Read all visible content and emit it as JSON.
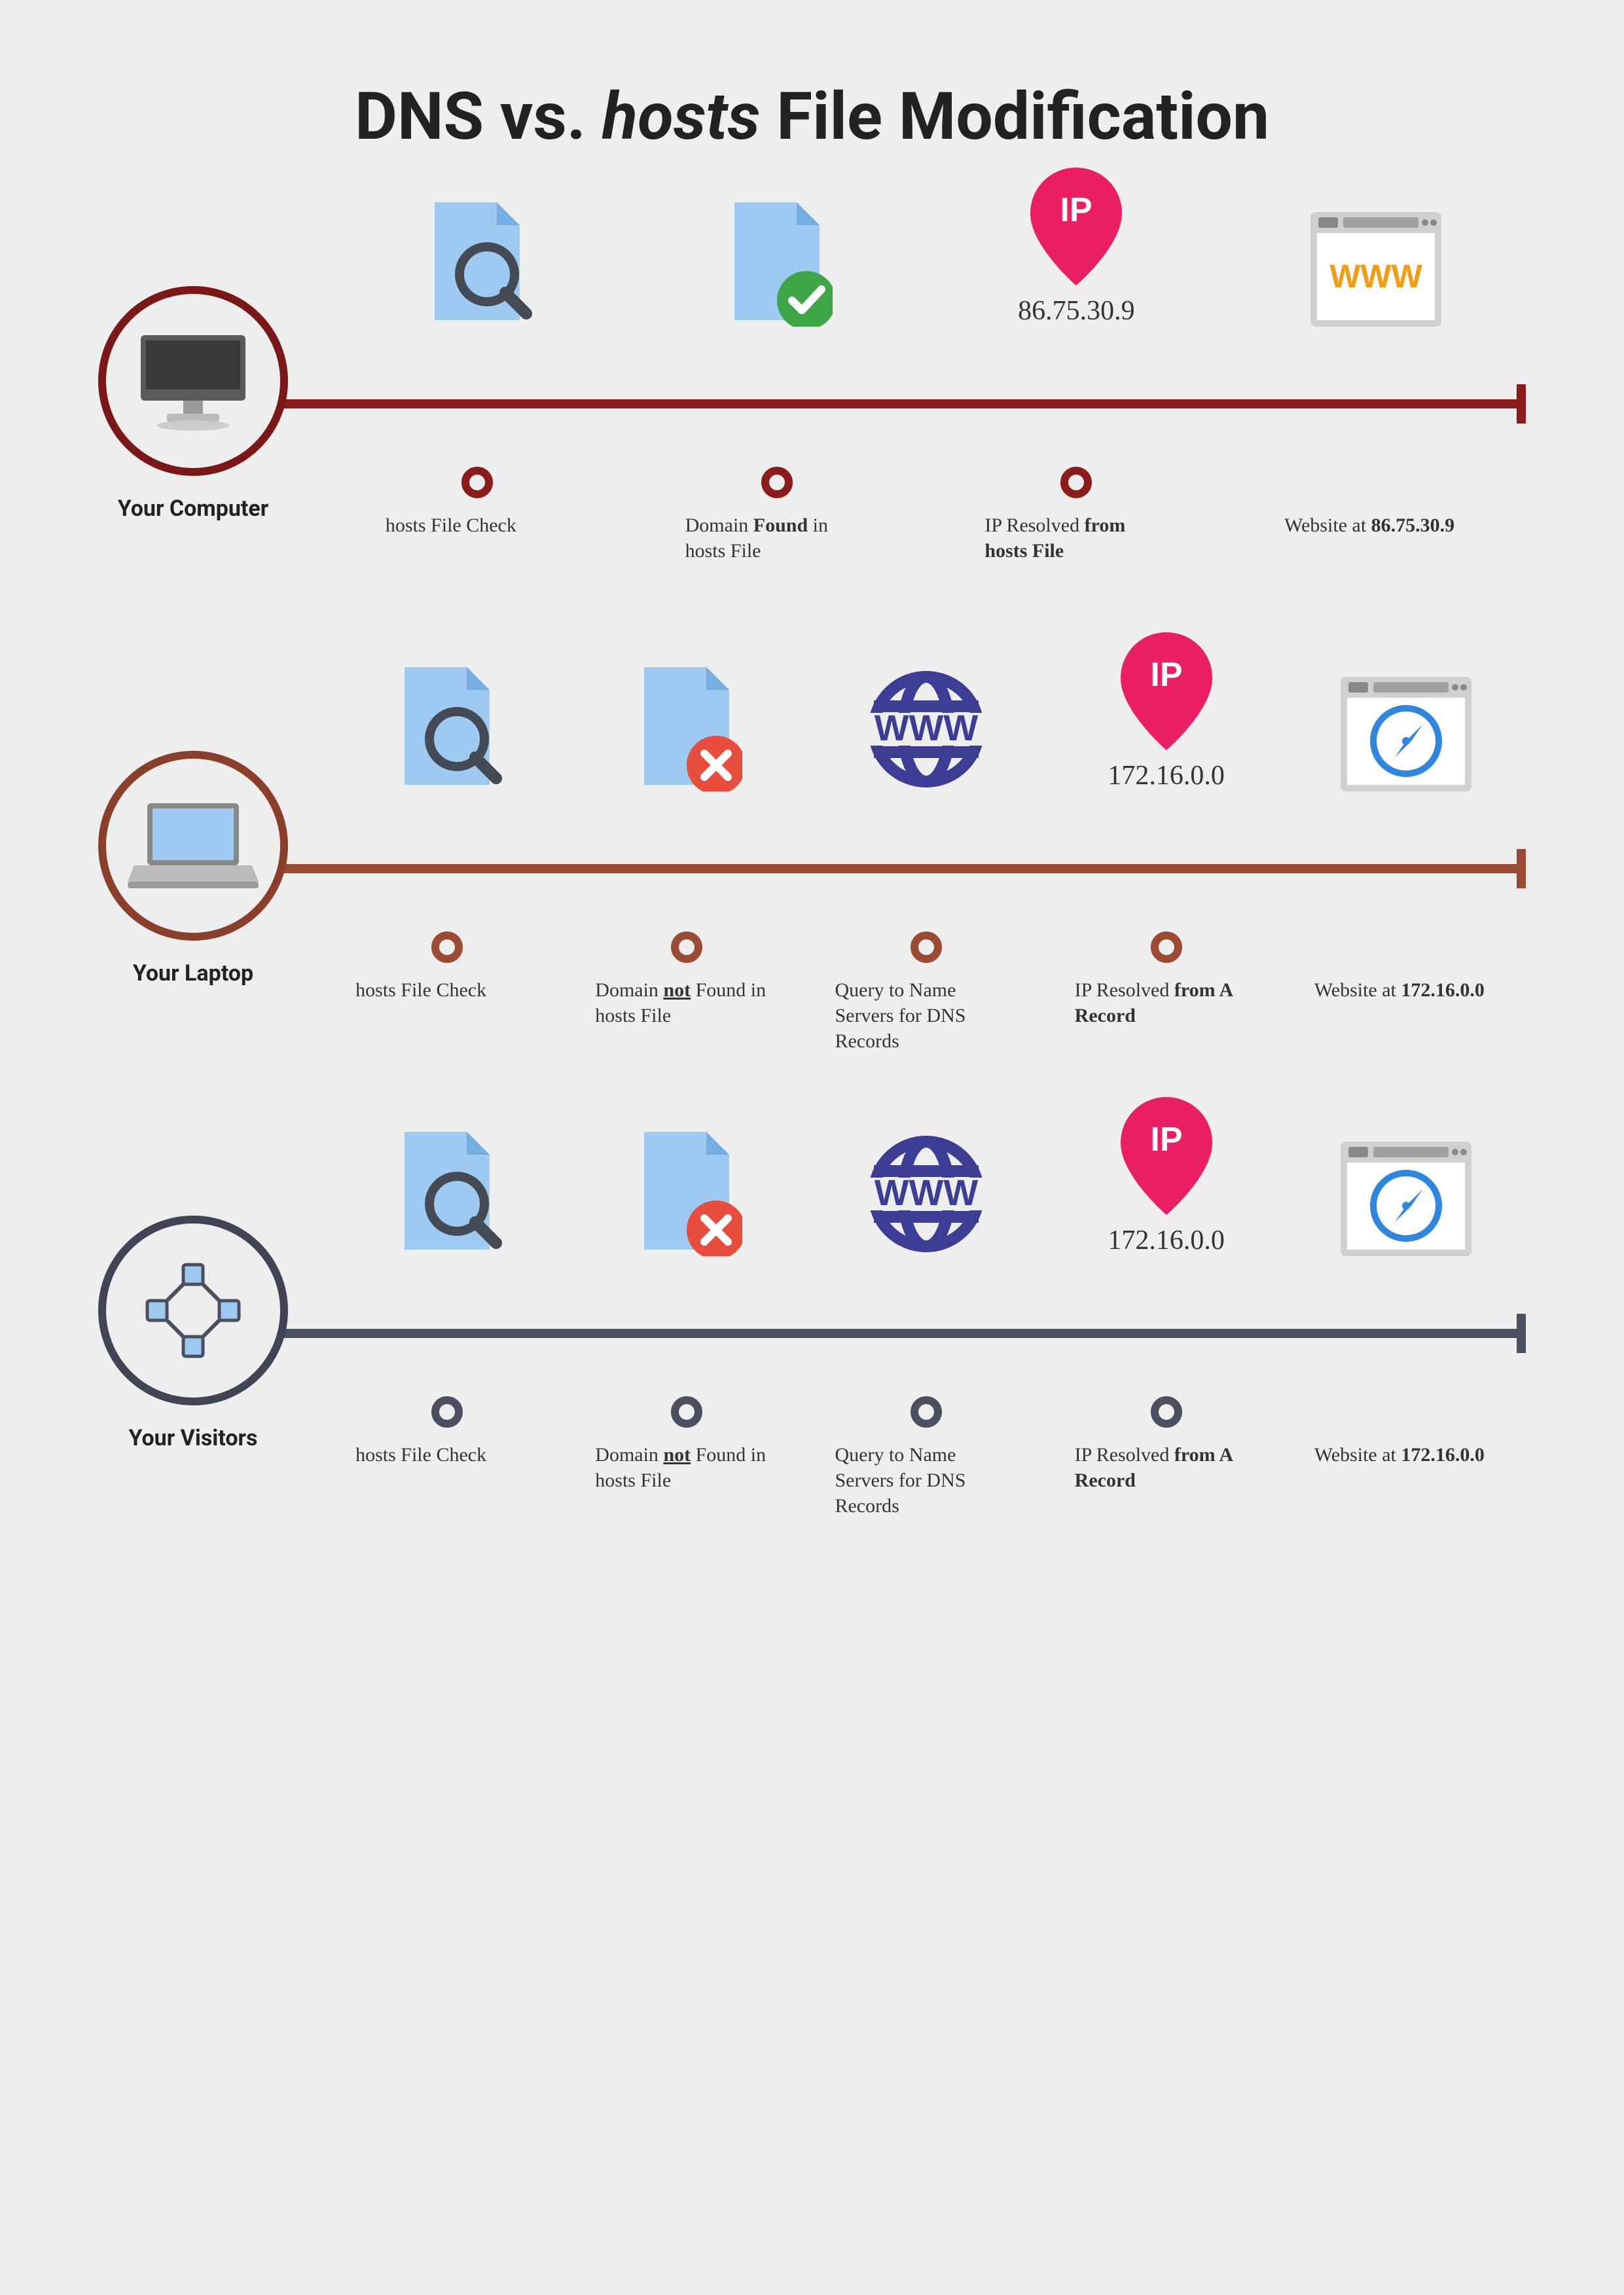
{
  "title_prefix": "DNS vs. ",
  "title_italic": "hosts",
  "title_suffix": " File Modification",
  "colors": {
    "bg": "#eeeeee",
    "file_blue": "#9ec9f0",
    "file_fold": "#74aee3",
    "magnify": "#434a54",
    "check_green": "#3fa648",
    "cross_red": "#e84c3d",
    "globe_blue": "#3b3e94",
    "pin_pink": "#e91e63",
    "browser_gray": "#cfd0d0",
    "browser_bar": "#a0a0a0",
    "www_orange": "#f39c12",
    "compass_blue": "#2e86de"
  },
  "timelines": [
    {
      "id": "computer",
      "origin_label": "Your Computer",
      "line_color": "#8c1c1c",
      "circle_border": "#7a1818",
      "steps": [
        {
          "icon": "file-search",
          "label_html": "hosts File Check"
        },
        {
          "icon": "file-check",
          "label_html": "Domain <b>Found</b> in hosts File"
        },
        {
          "icon": "ip-pin",
          "ip": "86.75.30.9",
          "label_html": "IP Resolved <b>from hosts File</b>"
        },
        {
          "icon": "browser-www",
          "label_html": "Website at <b>86.75.30.9</b>",
          "no_dot": true
        }
      ]
    },
    {
      "id": "laptop",
      "origin_label": "Your Laptop",
      "line_color": "#9b4a33",
      "circle_border": "#8a3f2a",
      "steps": [
        {
          "icon": "file-search",
          "label_html": "hosts File Check"
        },
        {
          "icon": "file-cross",
          "label_html": "Domain <b><u>not</u></b> Found in hosts File"
        },
        {
          "icon": "globe-www",
          "label_html": "Query to Name Servers for DNS Records"
        },
        {
          "icon": "ip-pin",
          "ip": "172.16.0.0",
          "label_html": "IP Resolved <b>from A Record</b>"
        },
        {
          "icon": "browser-compass",
          "label_html": "Website at <b>172.16.0.0</b>",
          "no_dot": true
        }
      ]
    },
    {
      "id": "visitors",
      "origin_label": "Your Visitors",
      "line_color": "#4a5060",
      "circle_border": "#3f4554",
      "steps": [
        {
          "icon": "file-search",
          "label_html": "hosts File Check"
        },
        {
          "icon": "file-cross",
          "label_html": "Domain <b><u>not</u></b> Found in hosts File"
        },
        {
          "icon": "globe-www",
          "label_html": "Query to Name Servers for DNS Records"
        },
        {
          "icon": "ip-pin",
          "ip": "172.16.0.0",
          "label_html": "IP Resolved <b>from A Record</b>"
        },
        {
          "icon": "browser-compass",
          "label_html": "Website at <b>172.16.0.0</b>",
          "no_dot": true
        }
      ]
    }
  ]
}
